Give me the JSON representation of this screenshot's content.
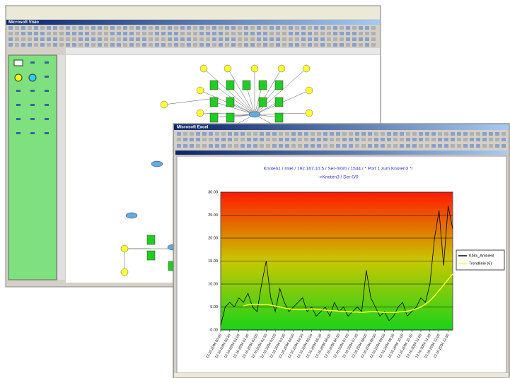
{
  "windows": [
    {
      "title": "Microsoft Visio"
    },
    {
      "title": "Microsoft Excel"
    }
  ],
  "chart_data": {
    "type": "line",
    "title": "Knoten1 / Intel / 192.167.10.5 / Ser-0/0/0 / 1544 / * Port 1 zum Knoten3 */",
    "subtitle": "->Knoten3 / Ser-0/0",
    "categories": [
      "12.10.2004 00:00",
      null,
      "12.10.2004 00:30",
      null,
      "12.10.2004 01:00",
      null,
      "12.10.2004 01:30",
      null,
      "12.10.2004 02:00",
      null,
      "12.10.2004 02:30",
      null,
      "12.10.2004 03:00",
      null,
      "12.10.2004 03:30",
      null,
      "12.10.2004 04:00",
      null,
      "12.10.2004 04:30",
      null,
      "12.10.2004 05:00",
      null,
      "12.10.2004 05:30",
      null,
      "12.10.2004 06:00",
      null,
      "12.10.2004 06:30",
      null,
      "12.10.2004 07:00",
      null,
      "12.10.2004 07:30",
      null,
      "12.10.2004 08:00",
      null,
      "12.10.2004 08:30",
      null,
      "12.10.2004 09:00",
      null,
      "12.10.2004 09:30",
      null,
      "12.10.2004 10:00",
      null,
      "12.10.2004 10:30",
      null,
      "12.10.2004 11:00",
      null,
      "12.10.2004 11:30",
      null,
      "12.10.2004 12:00",
      null,
      "12.10.2004 12:30",
      null
    ],
    "series": [
      {
        "name": "Kbits_Ambient",
        "color": "#000000",
        "values": [
          1,
          5,
          6,
          5,
          7,
          6,
          8,
          5,
          4,
          10,
          15,
          7,
          4,
          9,
          6,
          4,
          5,
          6,
          7,
          4,
          5,
          3,
          4,
          5,
          3,
          6,
          4,
          5,
          3,
          4,
          5,
          4,
          13,
          7,
          5,
          3,
          4,
          2,
          3,
          5,
          6,
          3,
          4,
          5,
          7,
          6,
          10,
          20,
          26,
          14,
          27,
          22
        ]
      },
      {
        "name": "Trendlinie (6)",
        "color": "#ffff33",
        "values": [
          null,
          null,
          null,
          null,
          null,
          5.2,
          5.5,
          5.6,
          5.6,
          5.5,
          5.6,
          5.4,
          5.2,
          5.0,
          4.8,
          4.6,
          4.5,
          4.4,
          4.4,
          4.5,
          4.6,
          4.5,
          4.4,
          4.3,
          4.2,
          4.2,
          4.1,
          4.0,
          4.0,
          3.9,
          3.9,
          3.8,
          3.9,
          4.0,
          4.0,
          3.9,
          3.8,
          3.8,
          3.8,
          3.9,
          4.0,
          4.1,
          4.3,
          4.6,
          5.0,
          5.6,
          6.4,
          7.4,
          8.6,
          9.8,
          11.0,
          12.2
        ]
      }
    ],
    "ylim": [
      0,
      30
    ],
    "yticks": [
      {
        "value": 0,
        "label": "0.00"
      },
      {
        "value": 5,
        "label": "5.00"
      },
      {
        "value": 10,
        "label": "10.00"
      },
      {
        "value": 15,
        "label": "15.00"
      },
      {
        "value": 20,
        "label": "20.00"
      },
      {
        "value": 25,
        "label": "25.00"
      },
      {
        "value": 30,
        "label": "30.00"
      }
    ],
    "grid": true
  }
}
